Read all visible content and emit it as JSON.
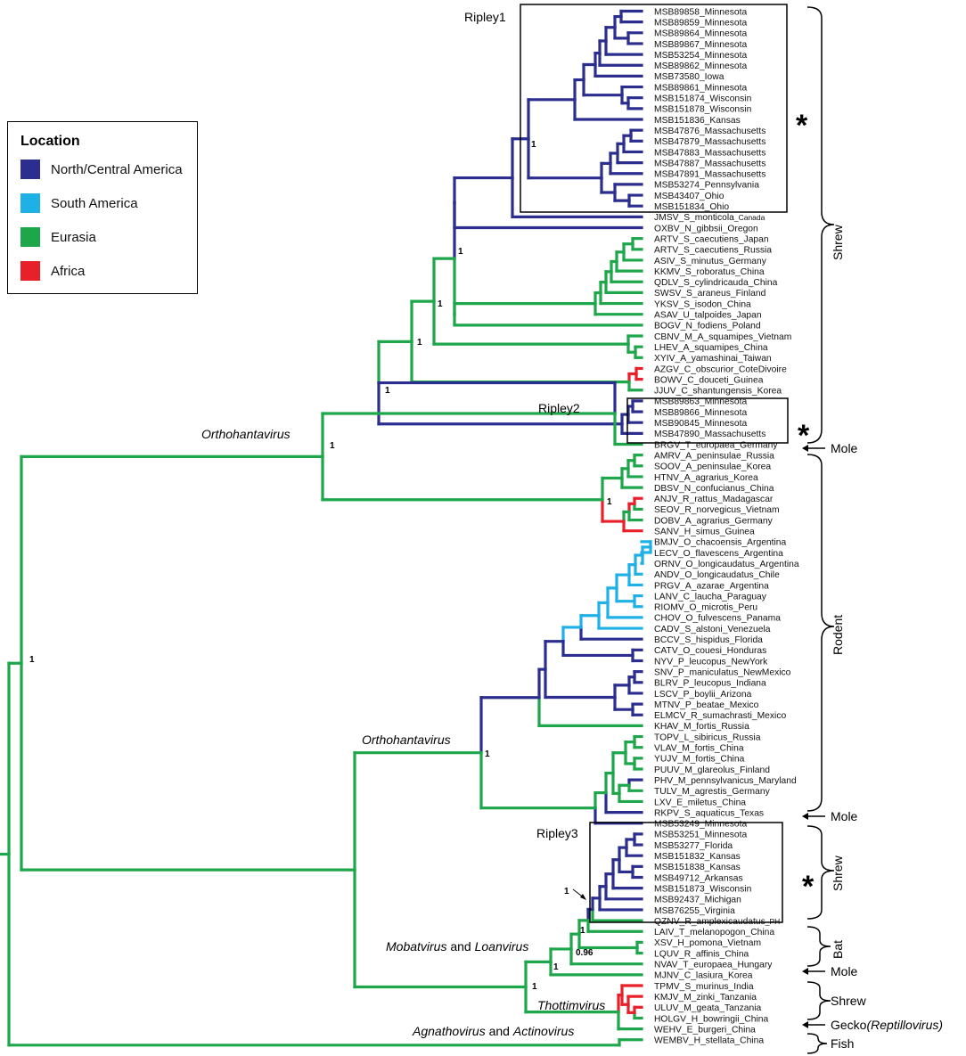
{
  "legend": {
    "title": "Location",
    "items": [
      {
        "label": "North/Central America",
        "color": "#2b2e8f"
      },
      {
        "label": "South America",
        "color": "#1fb1e6"
      },
      {
        "label": "Eurasia",
        "color": "#1ea64b"
      },
      {
        "label": "Africa",
        "color": "#e8202a"
      }
    ]
  },
  "leaves": [
    "MSB89858_Minnesota",
    "MSB89859_Minnesota",
    "MSB89864_Minnesota",
    "MSB89867_Minnesota",
    "MSB53254_Minnesota",
    "MSB89862_Minnesota",
    "MSB73580_Iowa",
    "MSB89861_Minnesota",
    "MSB151874_Wisconsin",
    "MSB151878_Wisconsin",
    "MSB151836_Kansas",
    "MSB47876_Massachusetts",
    "MSB47879_Massachusetts",
    "MSB47883_Massachusetts",
    "MSB47887_Massachusetts",
    "MSB47891_Massachusetts",
    "MSB53274_Pennsylvania",
    "MSB43407_Ohio",
    "MSB151834_Ohio",
    "JMSV_S_monticola",
    "OXBV_N_gibbsii_Oregon",
    "ARTV_S_caecutiens_Japan",
    "ARTV_S_caecutiens_Russia",
    "ASIV_S_minutus_Germany",
    "KKMV_S_roboratus_China",
    "QDLV_S_cylindricauda_China",
    "SWSV_S_araneus_Finland",
    "YKSV_S_isodon_China",
    "ASAV_U_talpoides_Japan",
    "BOGV_N_fodiens_Poland",
    "CBNV_M_A_squamipes_Vietnam",
    "LHEV_A_squamipes_China",
    "XYIV_A_yamashinai_Taiwan",
    "AZGV_C_obscurior_CoteDivoire",
    "BOWV_C_douceti_Guinea",
    "JJUV_C_shantungensis_Korea",
    "MSB89863_Minnesota",
    "MSB89866_Minnesota",
    "MSB90845_Minnesota",
    "MSB47890_Massachusetts",
    "BRGV_T_europaea_Germany",
    "AMRV_A_peninsulae_Russia",
    "SOOV_A_peninsulae_Korea",
    "HTNV_A_agrarius_Korea",
    "DBSV_N_confucianus_China",
    "ANJV_R_rattus_Madagascar",
    "SEOV_R_norvegicus_Vietnam",
    "DOBV_A_agrarius_Germany",
    "SANV_H_simus_Guinea",
    "BMJV_O_chacoensis_Argentina",
    "LECV_O_flavescens_Argentina",
    "ORNV_O_longicaudatus_Argentina",
    "ANDV_O_longicaudatus_Chile",
    "PRGV_A_azarae_Argentina",
    "LANV_C_laucha_Paraguay",
    "RIOMV_O_microtis_Peru",
    "CHOV_O_fulvescens_Panama",
    "CADV_S_alstoni_Venezuela",
    "BCCV_S_hispidus_Florida",
    "CATV_O_couesi_Honduras",
    "NYV_P_leucopus_NewYork",
    "SNV_P_maniculatus_NewMexico",
    "BLRV_P_leucopus_Indiana",
    "LSCV_P_boylii_Arizona",
    "MTNV_P_beatae_Mexico",
    "ELMCV_R_sumachrasti_Mexico",
    "KHAV_M_fortis_Russia",
    "TOPV_L_sibiricus_Russia",
    "VLAV_M_fortis_China",
    "YUJV_M_fortis_China",
    "PUUV_M_glareolus_Finland",
    "PHV_M_pennsylvanicus_Maryland",
    "TULV_M_agrestis_Germany",
    "LXV_E_miletus_China",
    "RKPV_S_aquaticus_Texas",
    "MSB53249_Minnesota",
    "MSB53251_Minnesota",
    "MSB53277_Florida",
    "MSB151832_Kansas",
    "MSB151838_Kansas",
    "MSB49712_Arkansas",
    "MSB151873_Wisconsin",
    "MSB92437_Michigan",
    "MSB76255_Virginia",
    "QZNV_R_amplexicaudatus",
    "LAIV_T_melanopogon_China",
    "XSV_H_pomona_Vietnam",
    "LQUV_R_affinis_China",
    "NVAV_T_europaea_Hungary",
    "MJNV_C_lasiura_Korea",
    "TPMV_S_murinus_India",
    "KMJV_M_zinki_Tanzania",
    "ULUV_M_geata_Tanzania",
    "HOLGV_H_bowringii_China",
    "WEHV_E_burgeri_China",
    "WEMBV_H_stellata_China"
  ],
  "leaf_suffix": {
    "JMSV_S_monticola": "_Canada",
    "QZNV_R_amplexicaudatus": "_PH"
  },
  "support": {
    "s1": "1",
    "s2": "1",
    "s3": "1",
    "s4": "1",
    "s5": "1",
    "s6": "1",
    "s7": "1",
    "s8": "1",
    "s9": "1",
    "s10": "1",
    "s11": "1",
    "s12": "0.96",
    "s13": "1",
    "s14": "1"
  },
  "genera": {
    "ortho_upper": "Orthohantavirus",
    "ortho_lower": "Orthohantavirus",
    "mobat": "Mobatvirus",
    "mobat_and": " and ",
    "loan": "Loanvirus",
    "thottim": "Thottimvirus",
    "agnatho": "Agnathovirus",
    "agnatho_and": " and ",
    "actino": "Actinovirus"
  },
  "boxes": {
    "ripley1": "Ripley1",
    "ripley2": "Ripley2",
    "ripley3": "Ripley3"
  },
  "stars": {
    "star1": "*",
    "star2": "*",
    "star3": "*"
  },
  "hosts": {
    "shrew1": "Shrew",
    "mole1": "Mole",
    "rodent": "Rodent",
    "mole2": "Mole",
    "shrew3": "Shrew",
    "bat": "Bat",
    "mole3": "Mole",
    "shrew4": "Shrew",
    "gecko": "Gecko",
    "reptillovirus": "(Reptillovirus)",
    "fish": "Fish"
  }
}
